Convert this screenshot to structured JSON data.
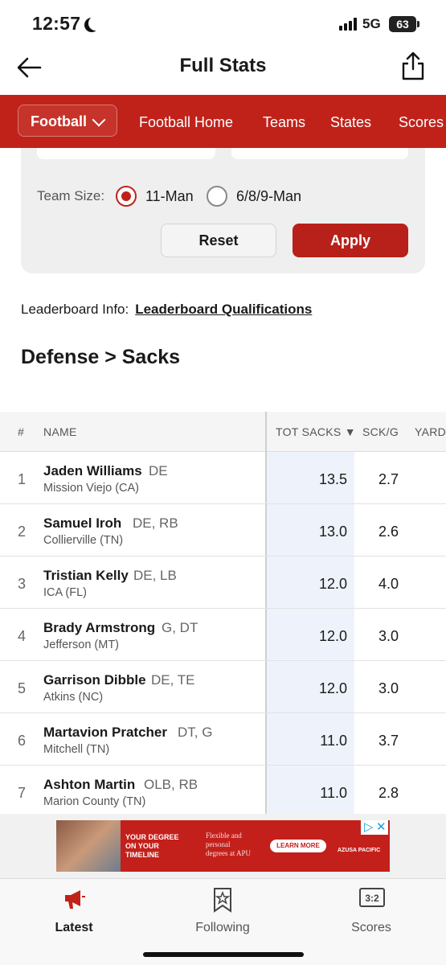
{
  "status_bar": {
    "time": "12:57",
    "network": "5G",
    "battery": "63"
  },
  "header": {
    "title": "Full Stats"
  },
  "nav": {
    "sport": "Football",
    "links": [
      "Football Home",
      "Teams",
      "States",
      "Scores"
    ]
  },
  "filters": {
    "team_size_label": "Team Size:",
    "options": [
      "11-Man",
      "6/8/9-Man"
    ],
    "selected": "11-Man",
    "reset_label": "Reset",
    "apply_label": "Apply"
  },
  "leaderboard_info": {
    "label": "Leaderboard Info:",
    "link": "Leaderboard Qualifications"
  },
  "section_title": "Defense > Sacks",
  "table": {
    "columns": [
      "#",
      "NAME",
      "TOT SACKS ▼",
      "SCK/G",
      "YARD"
    ],
    "rows": [
      {
        "rank": "1",
        "name": "Jaden Williams",
        "pos": "DE",
        "school": "Mission Viejo (CA)",
        "tot": "13.5",
        "sckg": "2.7"
      },
      {
        "rank": "2",
        "name": "Samuel Iroh",
        "pos": "DE, RB",
        "school": "Collierville (TN)",
        "tot": "13.0",
        "sckg": "2.6"
      },
      {
        "rank": "3",
        "name": "Tristian Kelly",
        "pos": "DE, LB",
        "school": "ICA (FL)",
        "tot": "12.0",
        "sckg": "4.0"
      },
      {
        "rank": "4",
        "name": "Brady Armstrong",
        "pos": "G, DT",
        "school": "Jefferson (MT)",
        "tot": "12.0",
        "sckg": "3.0"
      },
      {
        "rank": "5",
        "name": "Garrison Dibble",
        "pos": "DE, TE",
        "school": "Atkins (NC)",
        "tot": "12.0",
        "sckg": "3.0"
      },
      {
        "rank": "6",
        "name": "Martavion Pratcher",
        "pos": "DT, G",
        "school": "Mitchell (TN)",
        "tot": "11.0",
        "sckg": "3.7"
      },
      {
        "rank": "7",
        "name": "Ashton Martin",
        "pos": "OLB, RB",
        "school": "Marion County (TN)",
        "tot": "11.0",
        "sckg": "2.8"
      }
    ]
  },
  "ad": {
    "headline_1": "YOUR DEGREE",
    "headline_2": "ON YOUR",
    "headline_3": "TIMELINE",
    "sub_1": "Flexible and",
    "sub_2": "personal",
    "sub_3": "degrees at APU",
    "cta": "LEARN MORE",
    "logo": "AZUSA PACIFIC"
  },
  "tabs": [
    {
      "label": "Latest",
      "icon": "megaphone-icon",
      "active": true
    },
    {
      "label": "Following",
      "icon": "bookmark-star-icon",
      "active": false
    },
    {
      "label": "Scores",
      "icon": "scoreboard-icon",
      "active": false
    }
  ],
  "colors": {
    "brand_red": "#c0221a",
    "highlight_column": "#eef3fb"
  }
}
